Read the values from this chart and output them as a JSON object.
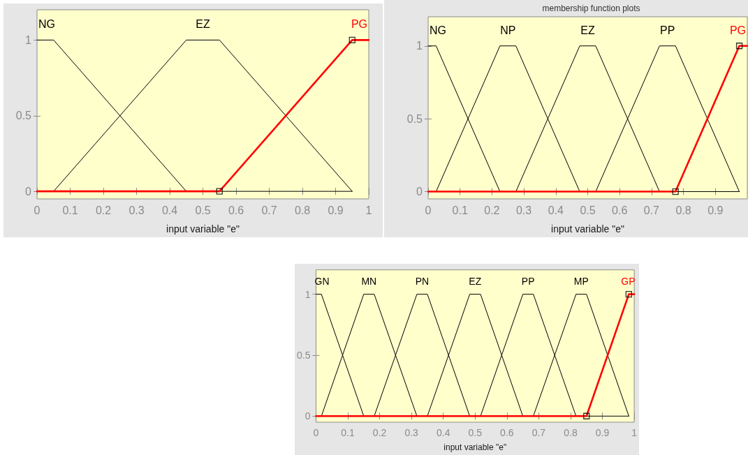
{
  "chart_data": [
    {
      "type": "line",
      "xlabel": "input variable \"e\"",
      "xlim": [
        0,
        1
      ],
      "xticks": [
        0,
        0.1,
        0.2,
        0.3,
        0.4,
        0.5,
        0.6,
        0.7,
        0.8,
        0.9,
        1
      ],
      "ylim": [
        -0.05,
        1.2
      ],
      "yticks": [
        0,
        0.5,
        1
      ],
      "marker": "none",
      "series": [
        {
          "name": "NG",
          "color": "#000000",
          "x": [
            0,
            0.05,
            0.45,
            0.95
          ],
          "values": [
            1,
            1,
            0,
            0
          ]
        },
        {
          "name": "EZ",
          "color": "#000000",
          "x": [
            0.05,
            0.45,
            0.55,
            0.95
          ],
          "values": [
            0,
            1,
            1,
            0
          ]
        },
        {
          "name": "PG",
          "color": "#ff0000",
          "x": [
            0,
            0.55,
            0.95,
            1
          ],
          "values": [
            0,
            0,
            1,
            1
          ]
        },
        {
          "type": "scatter",
          "marker": "square",
          "color": "#000000",
          "x": [
            0.55,
            0.95
          ],
          "values": [
            0,
            1
          ]
        }
      ]
    },
    {
      "type": "line",
      "title": "membership function plots",
      "xlabel": "input variable \"e\"",
      "xlim": [
        0,
        1
      ],
      "xticks": [
        0,
        0.1,
        0.2,
        0.3,
        0.4,
        0.5,
        0.6,
        0.7,
        0.8,
        0.9
      ],
      "ylim": [
        -0.05,
        1.2
      ],
      "yticks": [
        0,
        0.5,
        1
      ],
      "marker": "none",
      "series": [
        {
          "name": "NG",
          "color": "#000000",
          "x": [
            0,
            0.025,
            0.225,
            0.975
          ],
          "values": [
            1,
            1,
            0,
            0
          ]
        },
        {
          "name": "NP",
          "color": "#000000",
          "x": [
            0.025,
            0.225,
            0.275,
            0.475
          ],
          "values": [
            0,
            1,
            1,
            0
          ]
        },
        {
          "name": "EZ",
          "color": "#000000",
          "x": [
            0.275,
            0.475,
            0.525,
            0.725
          ],
          "values": [
            0,
            1,
            1,
            0
          ]
        },
        {
          "name": "PP",
          "color": "#000000",
          "x": [
            0.525,
            0.725,
            0.775,
            0.975
          ],
          "values": [
            0,
            1,
            1,
            0
          ]
        },
        {
          "name": "PG",
          "color": "#ff0000",
          "x": [
            0,
            0.775,
            0.975,
            1
          ],
          "values": [
            0,
            0,
            1,
            1
          ]
        },
        {
          "type": "scatter",
          "marker": "square",
          "color": "#000000",
          "x": [
            0.775,
            0.975
          ],
          "values": [
            0,
            1
          ]
        }
      ]
    },
    {
      "type": "line",
      "xlabel": "input variable \"e\"",
      "xlim": [
        0,
        1
      ],
      "xticks": [
        0,
        0.1,
        0.2,
        0.3,
        0.4,
        0.5,
        0.6,
        0.7,
        0.8,
        0.9,
        1
      ],
      "ylim": [
        -0.05,
        1.2
      ],
      "yticks": [
        0,
        0.5,
        1
      ],
      "marker": "none",
      "series": [
        {
          "name": "GN",
          "color": "#000000",
          "x": [
            0,
            0.017,
            0.15,
            0.983
          ],
          "values": [
            1,
            1,
            0,
            0
          ]
        },
        {
          "name": "MN",
          "color": "#000000",
          "x": [
            0.017,
            0.15,
            0.183,
            0.317
          ],
          "values": [
            0,
            1,
            1,
            0
          ]
        },
        {
          "name": "PN",
          "color": "#000000",
          "x": [
            0.183,
            0.317,
            0.35,
            0.483
          ],
          "values": [
            0,
            1,
            1,
            0
          ]
        },
        {
          "name": "EZ",
          "color": "#000000",
          "x": [
            0.35,
            0.483,
            0.517,
            0.65
          ],
          "values": [
            0,
            1,
            1,
            0
          ]
        },
        {
          "name": "PP",
          "color": "#000000",
          "x": [
            0.517,
            0.65,
            0.683,
            0.817
          ],
          "values": [
            0,
            1,
            1,
            0
          ]
        },
        {
          "name": "MP",
          "color": "#000000",
          "x": [
            0.683,
            0.817,
            0.85,
            0.983
          ],
          "values": [
            0,
            1,
            1,
            0
          ]
        },
        {
          "name": "GP",
          "color": "#ff0000",
          "x": [
            0,
            0.85,
            0.983,
            1
          ],
          "values": [
            0,
            0,
            1,
            1
          ]
        },
        {
          "type": "scatter",
          "marker": "square",
          "color": "#000000",
          "x": [
            0.85,
            0.983
          ],
          "values": [
            0,
            1
          ]
        }
      ]
    }
  ]
}
